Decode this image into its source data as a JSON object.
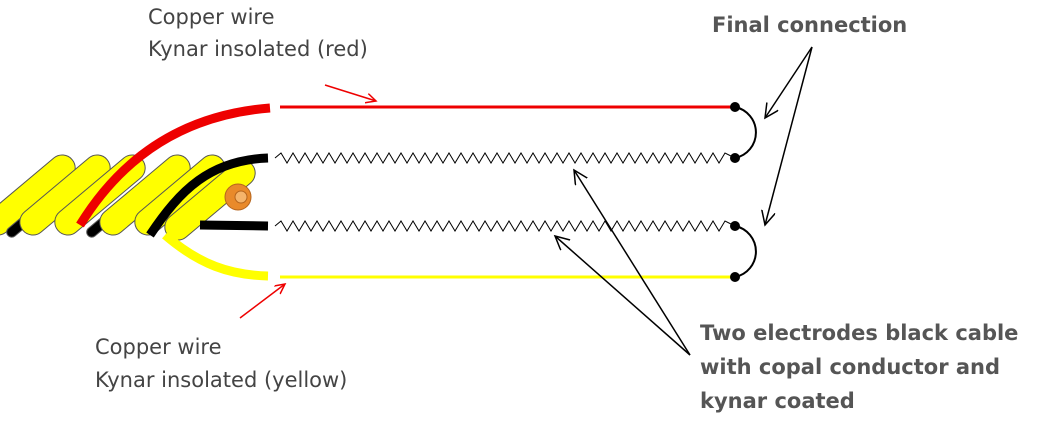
{
  "labels": {
    "red_wire": [
      "Copper wire",
      "Kynar insolated (red)"
    ],
    "yellow_wire": [
      "Copper wire",
      "Kynar insolated (yellow)"
    ],
    "final_connection": "Final connection",
    "electrodes": [
      "Two electrodes black cable",
      "with copal conductor and",
      "kynar coated"
    ]
  }
}
